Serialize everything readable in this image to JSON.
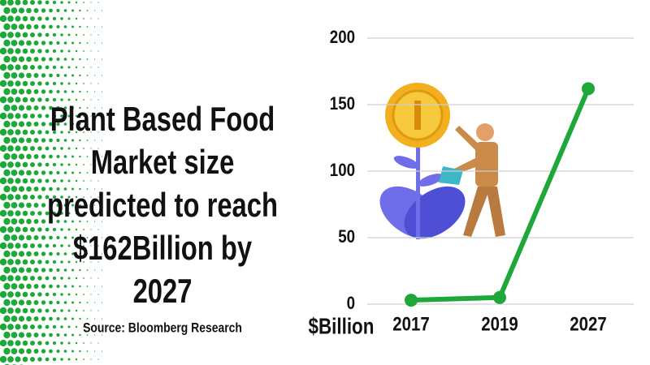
{
  "chart_data": {
    "type": "line",
    "title": [
      "Plant Based Food",
      "Market size",
      "predicted to reach",
      "$162Billion by",
      "2027"
    ],
    "source": "Source: Bloomberg Research",
    "y_label": "$Billion",
    "categories": [
      "2017",
      "2019",
      "2027"
    ],
    "values": [
      3,
      5,
      162
    ],
    "color": "#1ea83a",
    "ylim": [
      0,
      200
    ],
    "yticks": [
      0,
      50,
      100,
      150,
      200
    ],
    "grid": true
  }
}
